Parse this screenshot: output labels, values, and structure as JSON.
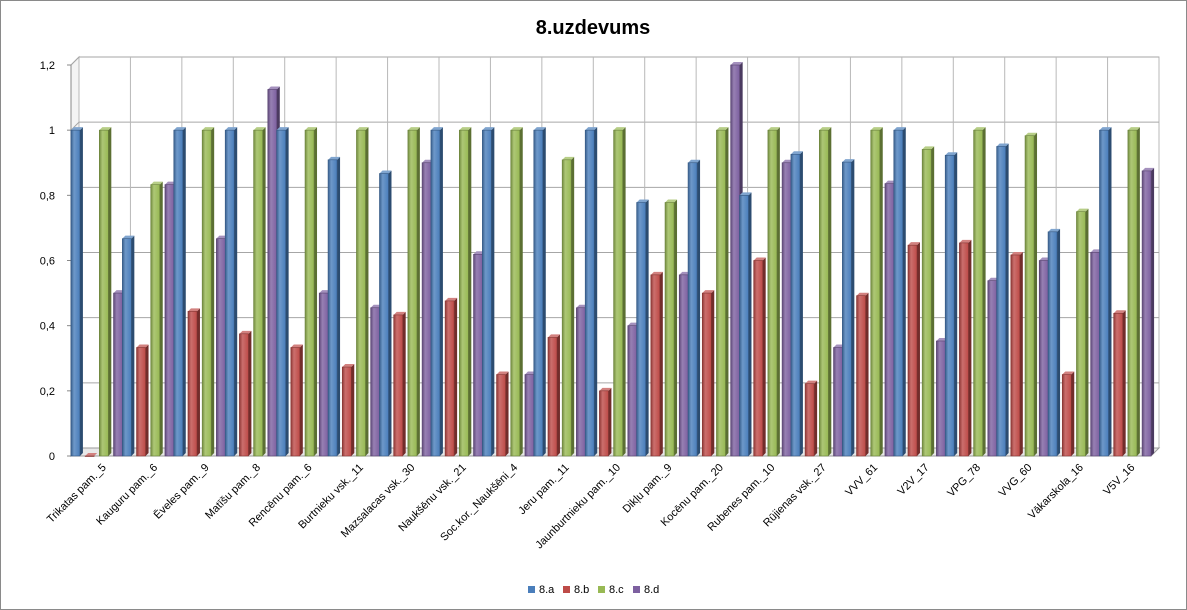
{
  "chart_data": {
    "type": "bar",
    "title": "8.uzdevums",
    "xlabel": "",
    "ylabel": "",
    "ylim": [
      0,
      1.2
    ],
    "yticks": [
      "0",
      "0,2",
      "0,4",
      "0,6",
      "0,8",
      "1",
      "1,2"
    ],
    "grid": true,
    "legend_position": "bottom",
    "categories": [
      "Trikatas pam._5",
      "Kauguru pam._6",
      "Ēveles pam._9",
      "Matīšu pam._8",
      "Rencēnu pam._6",
      "Burtnieku vsk._11",
      "Mazsalacas vsk._30",
      "Naukšēnu vsk._21",
      "Soc.kor._Naukšēni_4",
      "Jeru pam._11",
      "Jaunburtnieku pam._10",
      "Dikļu pam._9",
      "Kocēnu pam._20",
      "Rubenes pam._10",
      "Rūjienas vsk._27",
      "VVV_61",
      "V2V_17",
      "VPG_78",
      "VVG_60",
      "Vākarskola_16",
      "V5V_16"
    ],
    "series": [
      {
        "name": "8.a",
        "color": "#4a7ebb",
        "values": [
          1,
          0.667,
          1,
          1,
          1,
          0.909,
          0.867,
          1,
          1,
          1,
          1,
          0.778,
          0.9,
          0.8,
          0.926,
          0.902,
          1,
          0.923,
          0.95,
          0.688,
          1
        ]
      },
      {
        "name": "8.b",
        "color": "#be4b48",
        "values": [
          0,
          0.333,
          0.444,
          0.375,
          0.333,
          0.273,
          0.433,
          0.476,
          0.25,
          0.364,
          0.2,
          0.556,
          0.5,
          0.6,
          0.222,
          0.492,
          0.647,
          0.654,
          0.617,
          0.25,
          0.438
        ]
      },
      {
        "name": "8.c",
        "color": "#98b954",
        "values": [
          1,
          0.833,
          1,
          1,
          1,
          1,
          1,
          1,
          1,
          0.909,
          1,
          0.778,
          1,
          1,
          1,
          1,
          0.941,
          1,
          0.983,
          0.75,
          1
        ]
      },
      {
        "name": "8.d",
        "color": "#7d60a0",
        "values": [
          0.5,
          0.833,
          0.667,
          1.125,
          0.5,
          0.455,
          0.9,
          0.619,
          0.25,
          0.455,
          0.4,
          0.556,
          1.2,
          0.9,
          0.333,
          0.836,
          0.353,
          0.538,
          0.6,
          0.625,
          0.875
        ]
      }
    ]
  }
}
